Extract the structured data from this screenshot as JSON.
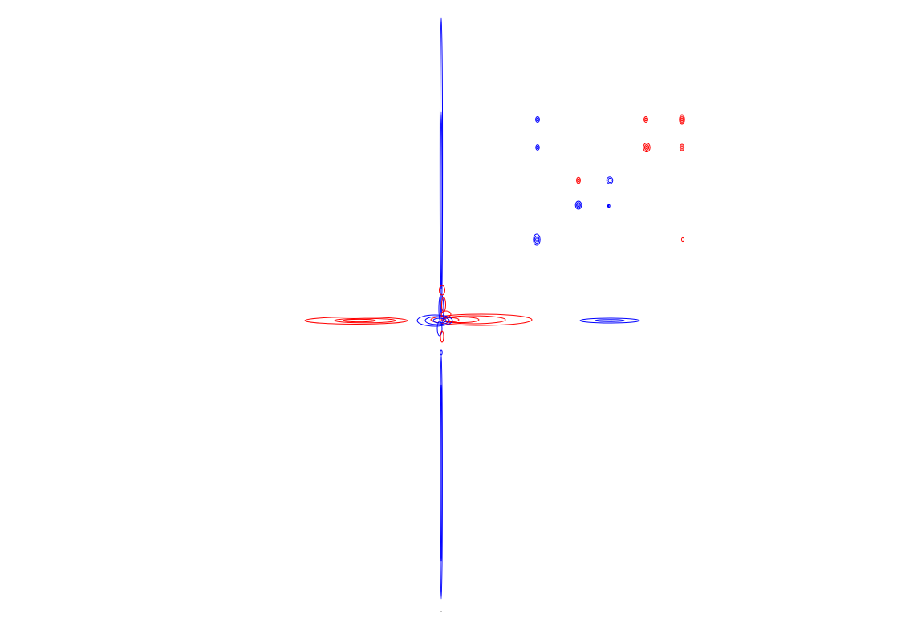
{
  "colors": {
    "background": "#ffffff",
    "positive": "#ff0000",
    "negative": "#0000ff"
  },
  "chart_data": {
    "type": "contour",
    "title": "",
    "xlabel": "",
    "ylabel": "",
    "axes_visible": false,
    "grid": false,
    "legend": "none",
    "series": [
      {
        "name": "",
        "sign": "positive",
        "color": "#ff0000"
      },
      {
        "name": "",
        "sign": "negative",
        "color": "#0000ff"
      }
    ],
    "peaks": [
      {
        "id": "a1",
        "sign": "negative",
        "level_count": 2
      },
      {
        "id": "a2",
        "sign": "positive",
        "level_count": 2
      },
      {
        "id": "a3",
        "sign": "positive",
        "level_count": 3
      },
      {
        "id": "b1",
        "sign": "negative",
        "level_count": 2
      },
      {
        "id": "b2",
        "sign": "positive",
        "level_count": 3
      },
      {
        "id": "b3",
        "sign": "positive",
        "level_count": 2
      },
      {
        "id": "c1",
        "sign": "positive",
        "level_count": 2
      },
      {
        "id": "c2",
        "sign": "negative",
        "level_count": 2
      },
      {
        "id": "c3",
        "sign": "negative",
        "level_count": 1
      },
      {
        "id": "d1",
        "sign": "negative",
        "level_count": 3
      },
      {
        "id": "d2",
        "sign": "negative",
        "level_count": 1
      },
      {
        "id": "e1",
        "sign": "negative",
        "level_count": 3
      },
      {
        "id": "e2",
        "sign": "positive",
        "level_count": 1
      }
    ],
    "ridges": [
      {
        "id": "vertical-ridge-upper",
        "sign": "negative",
        "orientation": "vertical"
      },
      {
        "id": "vertical-ridge-lower",
        "sign": "negative",
        "orientation": "vertical"
      },
      {
        "id": "horizontal-ridge-left",
        "sign": "positive",
        "orientation": "horizontal"
      },
      {
        "id": "horizontal-ridge-center",
        "sign": "positive",
        "orientation": "horizontal"
      },
      {
        "id": "horizontal-ridge-center-neg",
        "sign": "negative",
        "orientation": "horizontal"
      },
      {
        "id": "horizontal-ridge-right",
        "sign": "negative",
        "orientation": "horizontal"
      }
    ]
  }
}
